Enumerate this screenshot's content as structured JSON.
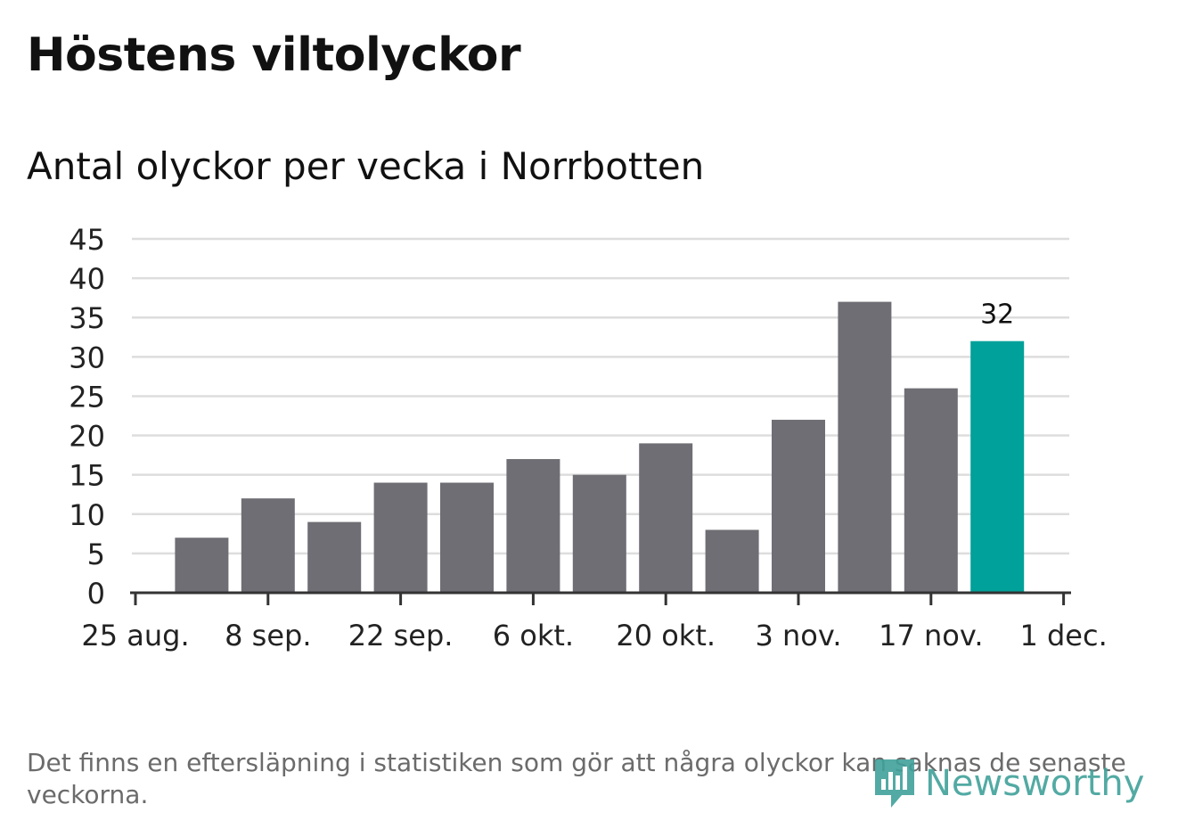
{
  "title": "Höstens viltolyckor",
  "subtitle": "Antal olyckor per vecka i Norrbotten",
  "footnote": "Det finns en eftersläpning i statistiken som gör att några olyckor kan saknas de senaste veckorna.",
  "logo": {
    "text": "Newsworthy",
    "icon": "speech-bubble-bar-chart-icon"
  },
  "colors": {
    "bar": "#6f6e74",
    "highlight": "#00a19a",
    "grid": "#dddddd",
    "axis": "#333333",
    "text": "#222222",
    "logo": "#40a19a"
  },
  "chart_data": {
    "type": "bar",
    "title": "Höstens viltolyckor",
    "subtitle": "Antal olyckor per vecka i Norrbotten",
    "xlabel": "",
    "ylabel": "",
    "ylim": [
      0,
      45
    ],
    "yticks": [
      0,
      5,
      10,
      15,
      20,
      25,
      30,
      35,
      40,
      45
    ],
    "xticks": [
      "25 aug.",
      "8 sep.",
      "22 sep.",
      "6 okt.",
      "20 okt.",
      "3 nov.",
      "17 nov.",
      "1 dec."
    ],
    "weeks": [
      "1 sep.",
      "8 sep.",
      "15 sep.",
      "22 sep.",
      "29 sep.",
      "6 okt.",
      "13 okt.",
      "20 okt.",
      "27 okt.",
      "3 nov.",
      "10 nov.",
      "17 nov.",
      "24 nov."
    ],
    "values": [
      7,
      12,
      9,
      14,
      14,
      17,
      15,
      19,
      8,
      22,
      37,
      26,
      32
    ],
    "highlight_index": 12,
    "data_labels": [
      {
        "index": 12,
        "label": "32"
      }
    ],
    "grid": true,
    "legend": "none"
  }
}
